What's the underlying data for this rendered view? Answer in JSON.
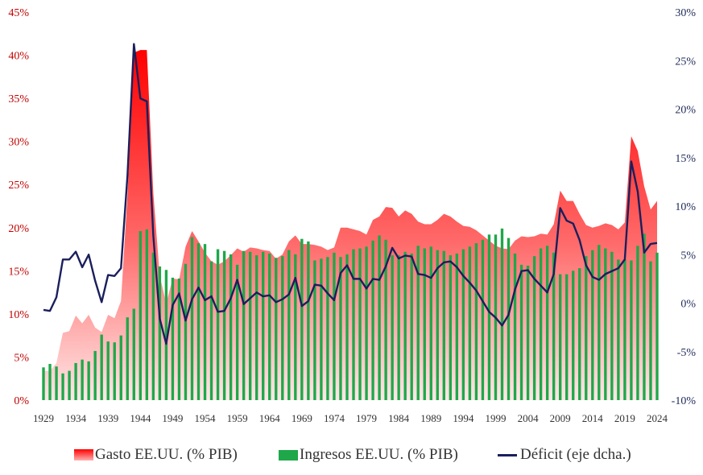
{
  "chart_data": {
    "type": "bar+area+line",
    "legend": {
      "gasto": "Gasto EE.UU. (% PIB)",
      "ingresos": "Ingresos EE.UU. (% PIB)",
      "deficit": "Déficit (eje dcha.)"
    },
    "y_left": {
      "min": 0,
      "max": 45,
      "ticks": [
        "0%",
        "5%",
        "10%",
        "15%",
        "20%",
        "25%",
        "30%",
        "35%",
        "40%",
        "45%"
      ]
    },
    "y_right": {
      "min": -10,
      "max": 30,
      "ticks": [
        "-10%",
        "-5%",
        "0%",
        "5%",
        "10%",
        "15%",
        "20%",
        "25%",
        "30%"
      ]
    },
    "x_tick_labels": [
      "1929",
      "1934",
      "1939",
      "1944",
      "1949",
      "1954",
      "1959",
      "1964",
      "1969",
      "1974",
      "1979",
      "1984",
      "1989",
      "1994",
      "1999",
      "2004",
      "2009",
      "2014",
      "2019",
      "2024"
    ],
    "colors": {
      "gasto_top": "#ff0000",
      "gasto_bottom": "#ffe8e8",
      "ingresos": "#1ea84a",
      "deficit": "#1a1f5c",
      "left_axis": "#c00000",
      "right_axis": "#1f2a5a"
    },
    "years": [
      1929,
      1930,
      1931,
      1932,
      1933,
      1934,
      1935,
      1936,
      1937,
      1938,
      1939,
      1940,
      1941,
      1942,
      1943,
      1944,
      1945,
      1946,
      1947,
      1948,
      1949,
      1950,
      1951,
      1952,
      1953,
      1954,
      1955,
      1956,
      1957,
      1958,
      1959,
      1960,
      1961,
      1962,
      1963,
      1964,
      1965,
      1966,
      1967,
      1968,
      1969,
      1970,
      1971,
      1972,
      1973,
      1974,
      1975,
      1976,
      1977,
      1978,
      1979,
      1980,
      1981,
      1982,
      1983,
      1984,
      1985,
      1986,
      1987,
      1988,
      1989,
      1990,
      1991,
      1992,
      1993,
      1994,
      1995,
      1996,
      1997,
      1998,
      1999,
      2000,
      2001,
      2002,
      2003,
      2004,
      2005,
      2006,
      2007,
      2008,
      2009,
      2010,
      2011,
      2012,
      2013,
      2014,
      2015,
      2016,
      2017,
      2018,
      2019,
      2020,
      2021,
      2022,
      2023,
      2024
    ],
    "gasto": [
      3.4,
      3.4,
      4.3,
      7.8,
      8.0,
      9.8,
      8.9,
      9.9,
      8.4,
      7.9,
      9.9,
      9.5,
      11.5,
      23.7,
      40.3,
      40.6,
      40.6,
      24.0,
      14.4,
      11.2,
      14.1,
      14.0,
      17.8,
      19.6,
      18.4,
      17.1,
      16.1,
      15.7,
      16.1,
      16.8,
      17.6,
      17.2,
      17.7,
      17.6,
      17.4,
      17.3,
      16.4,
      16.9,
      18.4,
      19.1,
      18.1,
      18.1,
      18.0,
      17.8,
      17.4,
      17.7,
      20.0,
      20.0,
      19.8,
      19.6,
      19.2,
      20.9,
      21.3,
      22.4,
      22.3,
      21.3,
      22.0,
      21.6,
      20.7,
      20.4,
      20.4,
      20.9,
      21.6,
      21.3,
      20.7,
      20.2,
      20.1,
      19.7,
      19.1,
      18.5,
      17.9,
      17.6,
      17.5,
      18.5,
      19.0,
      18.9,
      19.0,
      19.3,
      19.2,
      20.4,
      24.3,
      23.1,
      23.1,
      21.6,
      20.3,
      20.0,
      20.2,
      20.5,
      20.3,
      19.8,
      20.6,
      30.6,
      28.9,
      24.8,
      22.1,
      23.1
    ],
    "ingresos": [
      3.8,
      4.2,
      3.9,
      3.1,
      3.4,
      4.3,
      4.7,
      4.5,
      5.7,
      7.6,
      6.8,
      6.7,
      7.5,
      9.6,
      10.6,
      19.6,
      19.8,
      17.1,
      15.5,
      15.1,
      14.2,
      14.1,
      15.8,
      18.9,
      18.2,
      18.1,
      16.1,
      17.5,
      17.3,
      16.9,
      15.7,
      17.3,
      17.2,
      16.8,
      17.2,
      17.0,
      16.5,
      16.7,
      17.4,
      16.9,
      18.7,
      18.4,
      16.2,
      16.4,
      16.6,
      17.1,
      16.6,
      16.9,
      17.5,
      17.6,
      17.8,
      18.5,
      19.1,
      18.6,
      16.8,
      16.8,
      17.2,
      17.0,
      17.9,
      17.6,
      17.8,
      17.4,
      17.3,
      16.8,
      17.0,
      17.5,
      17.8,
      18.2,
      18.6,
      19.2,
      19.2,
      19.9,
      18.8,
      17.0,
      15.7,
      15.6,
      16.7,
      17.6,
      17.9,
      17.1,
      14.6,
      14.6,
      15.0,
      15.3,
      16.7,
      17.4,
      18.0,
      17.6,
      17.2,
      16.3,
      16.3,
      16.2,
      17.9,
      19.3,
      16.1,
      17.1
    ],
    "deficit": [
      -0.7,
      -0.8,
      0.6,
      4.5,
      4.5,
      5.3,
      3.7,
      5.0,
      2.3,
      0.1,
      2.9,
      2.8,
      3.6,
      13.1,
      26.7,
      21.1,
      20.8,
      7.0,
      -1.6,
      -4.2,
      -0.2,
      1.0,
      -1.8,
      0.4,
      1.6,
      0.3,
      0.7,
      -0.9,
      -0.8,
      0.5,
      2.4,
      -0.1,
      0.5,
      1.1,
      0.7,
      0.8,
      0.1,
      0.4,
      0.9,
      2.6,
      -0.3,
      0.2,
      1.9,
      1.8,
      1.0,
      0.3,
      3.1,
      3.9,
      2.5,
      2.5,
      1.5,
      2.5,
      2.4,
      3.8,
      5.7,
      4.6,
      4.9,
      4.8,
      3.0,
      2.9,
      2.6,
      3.6,
      4.2,
      4.3,
      3.7,
      2.8,
      2.1,
      1.3,
      0.2,
      -0.9,
      -1.5,
      -2.3,
      -1.2,
      1.4,
      3.3,
      3.4,
      2.5,
      1.8,
      1.1,
      3.0,
      9.8,
      8.5,
      8.2,
      6.5,
      3.9,
      2.7,
      2.4,
      3.0,
      3.3,
      3.6,
      4.5,
      14.6,
      11.5,
      5.2,
      6.1,
      6.2
    ]
  }
}
